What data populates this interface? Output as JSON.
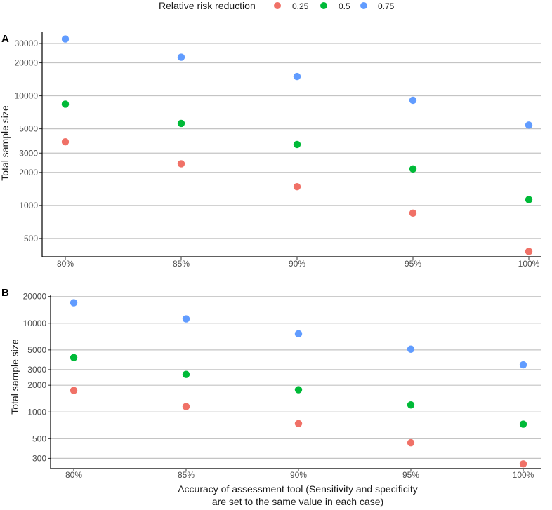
{
  "legend": {
    "title": "Relative risk reduction",
    "entries": [
      {
        "label": "0.25",
        "color": "#F07167"
      },
      {
        "label": "0.5",
        "color": "#00BA38"
      },
      {
        "label": "0.75",
        "color": "#619CFF"
      }
    ]
  },
  "x_axis_title_lines": [
    "Accuracy of assessment tool (Sensitivity and specificity",
    "are set to the same value in each case)"
  ],
  "chart_data": [
    {
      "type": "scatter",
      "panel_label": "A",
      "categories": [
        "80%",
        "85%",
        "90%",
        "95%",
        "100%"
      ],
      "ylabel": "Total sample size",
      "yscale": "log",
      "ylim": [
        340,
        38000
      ],
      "yticks": [
        500,
        1000,
        2000,
        3000,
        5000,
        10000,
        20000,
        30000
      ],
      "ytick_labels": [
        "500",
        "1000",
        "2000",
        "3000",
        "5000",
        "10000",
        "20000",
        "30000"
      ],
      "series": [
        {
          "name": "0.25",
          "values": [
            3800,
            2400,
            1480,
            850,
            380
          ]
        },
        {
          "name": "0.5",
          "values": [
            8400,
            5600,
            3600,
            2150,
            1130
          ]
        },
        {
          "name": "0.75",
          "values": [
            33000,
            22500,
            15000,
            9100,
            5400
          ]
        }
      ]
    },
    {
      "type": "scatter",
      "panel_label": "B",
      "categories": [
        "80%",
        "85%",
        "90%",
        "95%",
        "100%"
      ],
      "ylabel": "Total sample size",
      "yscale": "log",
      "ylim": [
        230,
        21000
      ],
      "yticks": [
        300,
        500,
        1000,
        2000,
        3000,
        5000,
        10000,
        20000
      ],
      "ytick_labels": [
        "300",
        "500",
        "1000",
        "2000",
        "3000",
        "5000",
        "10000",
        "20000"
      ],
      "series": [
        {
          "name": "0.25",
          "values": [
            1750,
            1150,
            740,
            450,
            260
          ]
        },
        {
          "name": "0.5",
          "values": [
            4100,
            2650,
            1780,
            1200,
            730
          ]
        },
        {
          "name": "0.75",
          "values": [
            17000,
            11200,
            7600,
            5100,
            3400
          ]
        }
      ]
    }
  ]
}
